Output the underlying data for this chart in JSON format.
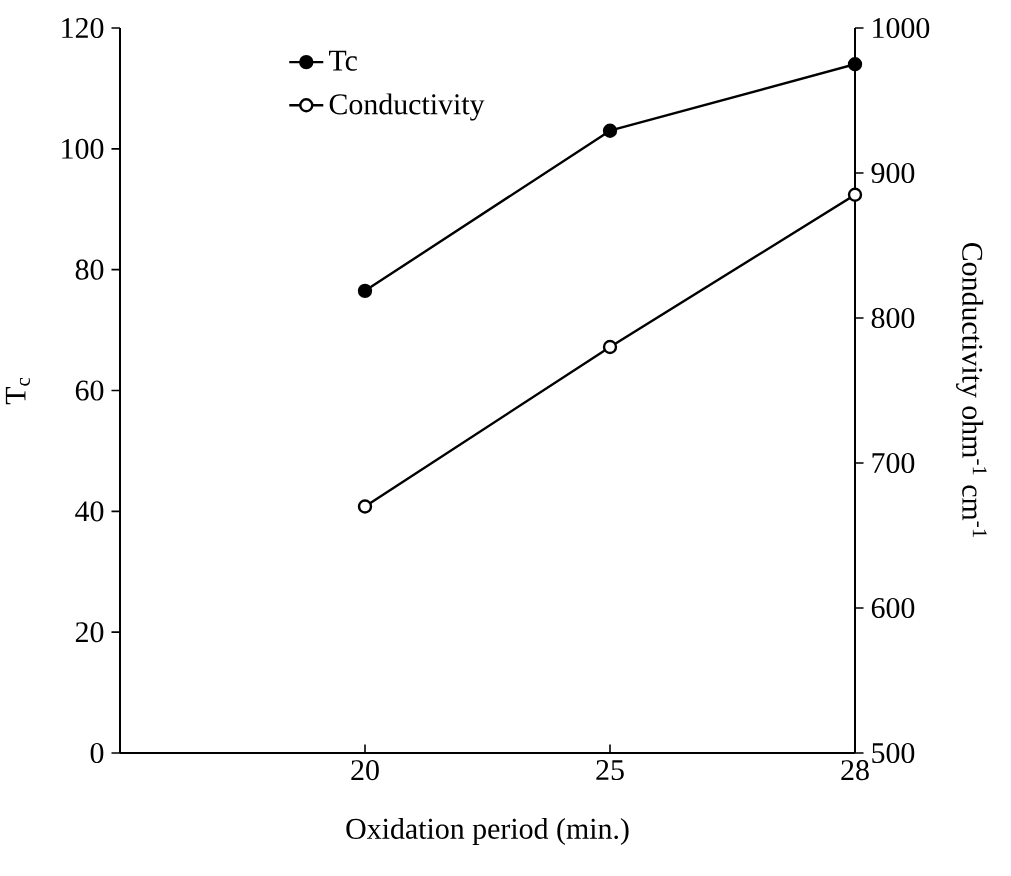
{
  "chart_data": {
    "type": "line",
    "xlabel": "Oxidation period (min.)",
    "ylabel": "T$_{c}$",
    "y2label": "Conductivity  ohm$^{-1}$ cm$^{-1}$",
    "categories": [
      "20",
      "25",
      "28"
    ],
    "series": [
      {
        "name": "Tc",
        "color": "#000000",
        "values": [
          76.5,
          103,
          114
        ]
      },
      {
        "name": "Conductivity",
        "color": "#000000",
        "values": [
          670,
          780,
          885
        ],
        "axis": "y2"
      }
    ],
    "ylim": [
      0,
      120
    ],
    "yticks": [
      0,
      20,
      40,
      60,
      80,
      100,
      120
    ],
    "y2lim": [
      500,
      1000
    ],
    "y2ticks": [
      500,
      600,
      700,
      800,
      900,
      1000
    ],
    "legend": "top left",
    "marker": "circle",
    "line_style": "solid",
    "grid": false
  }
}
